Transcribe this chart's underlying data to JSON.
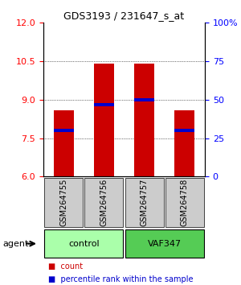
{
  "title": "GDS3193 / 231647_s_at",
  "samples": [
    "GSM264755",
    "GSM264756",
    "GSM264757",
    "GSM264758"
  ],
  "groups": [
    "control",
    "control",
    "VAF347",
    "VAF347"
  ],
  "group_labels": [
    "control",
    "VAF347"
  ],
  "group_colors": [
    "#90EE90",
    "#00CC00"
  ],
  "bar_color": "#CC0000",
  "percentile_color": "#0000CC",
  "ylim_left": [
    6,
    12
  ],
  "yticks_left": [
    6,
    7.5,
    9,
    10.5,
    12
  ],
  "yticks_right": [
    0,
    25,
    50,
    75,
    100
  ],
  "ylim_right": [
    0,
    100
  ],
  "bar_values": [
    8.6,
    10.4,
    10.4,
    8.6
  ],
  "percentile_values": [
    30,
    47,
    50,
    30
  ],
  "bar_bottom": 6,
  "xlabel": "agent",
  "legend_items": [
    "count",
    "percentile rank within the sample"
  ],
  "grid_yticks": [
    7.5,
    9,
    10.5
  ],
  "sample_bg_color": "#CCCCCC",
  "group1_color": "#AAFFAA",
  "group2_color": "#55CC55"
}
